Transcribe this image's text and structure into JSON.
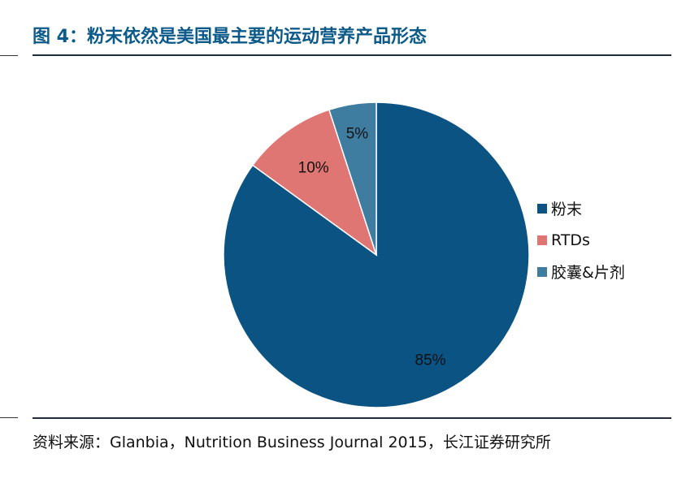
{
  "figure": {
    "title": "图 4：粉末依然是美国最主要的运动营养产品形态",
    "source": "资料来源：Glanbia，Nutrition Business Journal 2015，长江证券研究所"
  },
  "chart_data": {
    "type": "pie",
    "title": "",
    "start_angle_deg": 0,
    "direction": "clockwise",
    "legend_position": "right",
    "slices": [
      {
        "label": "粉末",
        "value": 85,
        "display": "85%",
        "color": "#0b5382"
      },
      {
        "label": "RTDs",
        "value": 10,
        "display": "10%",
        "color": "#e07674"
      },
      {
        "label": "胶囊&片剂",
        "value": 5,
        "display": "5%",
        "color": "#3f7da0"
      }
    ]
  }
}
